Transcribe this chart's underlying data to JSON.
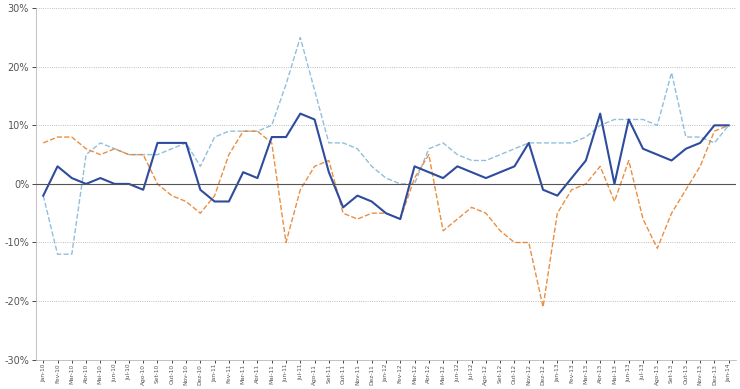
{
  "x_labels": [
    "Jan-10",
    "Fev-10",
    "Mar-10",
    "Abr-10",
    "Mai-10",
    "Jun-10",
    "Jul-10",
    "Ago-10",
    "Set-10",
    "Out-10",
    "Nov-10",
    "Dez-10",
    "Jan-11",
    "Fev-11",
    "Mar-11",
    "Abr-11",
    "Mai-11",
    "Jun-11",
    "Jul-11",
    "Ago-11",
    "Set-11",
    "Out-11",
    "Nov-11",
    "Dez-11",
    "Jan-12",
    "Fev-12",
    "Mar-12",
    "Abr-12",
    "Mai-12",
    "Jun-12",
    "Jul-12",
    "Ago-12",
    "Set-12",
    "Out-12",
    "Nov-12",
    "Dez-12",
    "Jan-13",
    "Fev-13",
    "Mar-13",
    "Abr-13",
    "Mai-13",
    "Jun-13",
    "Jul-13",
    "Ago-13",
    "Set-13",
    "Out-13",
    "Nov-13",
    "Dez-13",
    "Jan-14"
  ],
  "dark_blue": [
    -2,
    3,
    1,
    0,
    1,
    0,
    0,
    -1,
    7,
    7,
    7,
    -1,
    -3,
    -3,
    2,
    1,
    8,
    8,
    12,
    11,
    2,
    -4,
    -2,
    -3,
    -5,
    -6,
    3,
    2,
    1,
    3,
    2,
    1,
    2,
    3,
    7,
    -1,
    -2,
    1,
    4,
    12,
    0,
    11,
    6,
    5,
    4,
    6,
    7,
    10,
    10
  ],
  "light_blue": [
    -2,
    -12,
    -12,
    5,
    7,
    6,
    5,
    5,
    5,
    6,
    7,
    3,
    8,
    9,
    9,
    9,
    10,
    17,
    25,
    16,
    7,
    7,
    6,
    3,
    1,
    0,
    0,
    6,
    7,
    5,
    4,
    4,
    5,
    6,
    7,
    7,
    7,
    7,
    8,
    10,
    11,
    11,
    11,
    10,
    19,
    8,
    8,
    7,
    10
  ],
  "orange": [
    7,
    8,
    8,
    6,
    5,
    6,
    5,
    5,
    0,
    -2,
    -3,
    -5,
    -2,
    5,
    9,
    9,
    7,
    -10,
    -1,
    3,
    4,
    -5,
    -6,
    -5,
    -5,
    -6,
    1,
    5,
    -8,
    -6,
    -4,
    -5,
    -8,
    -10,
    -10,
    -21,
    -5,
    -1,
    0,
    3,
    -3,
    4,
    -6,
    -11,
    -5,
    -1,
    3,
    9,
    10
  ],
  "ylim": [
    -30,
    30
  ],
  "yticks": [
    -30,
    -20,
    -10,
    0,
    10,
    20,
    30
  ],
  "ytick_labels": [
    "-30%",
    "-20%",
    "-10%",
    "0%",
    "10%",
    "20%",
    "30%"
  ],
  "bg_color": "#ffffff",
  "dark_blue_color": "#2e4b9e",
  "light_blue_color": "#7eb4d6",
  "orange_color": "#e8822d"
}
